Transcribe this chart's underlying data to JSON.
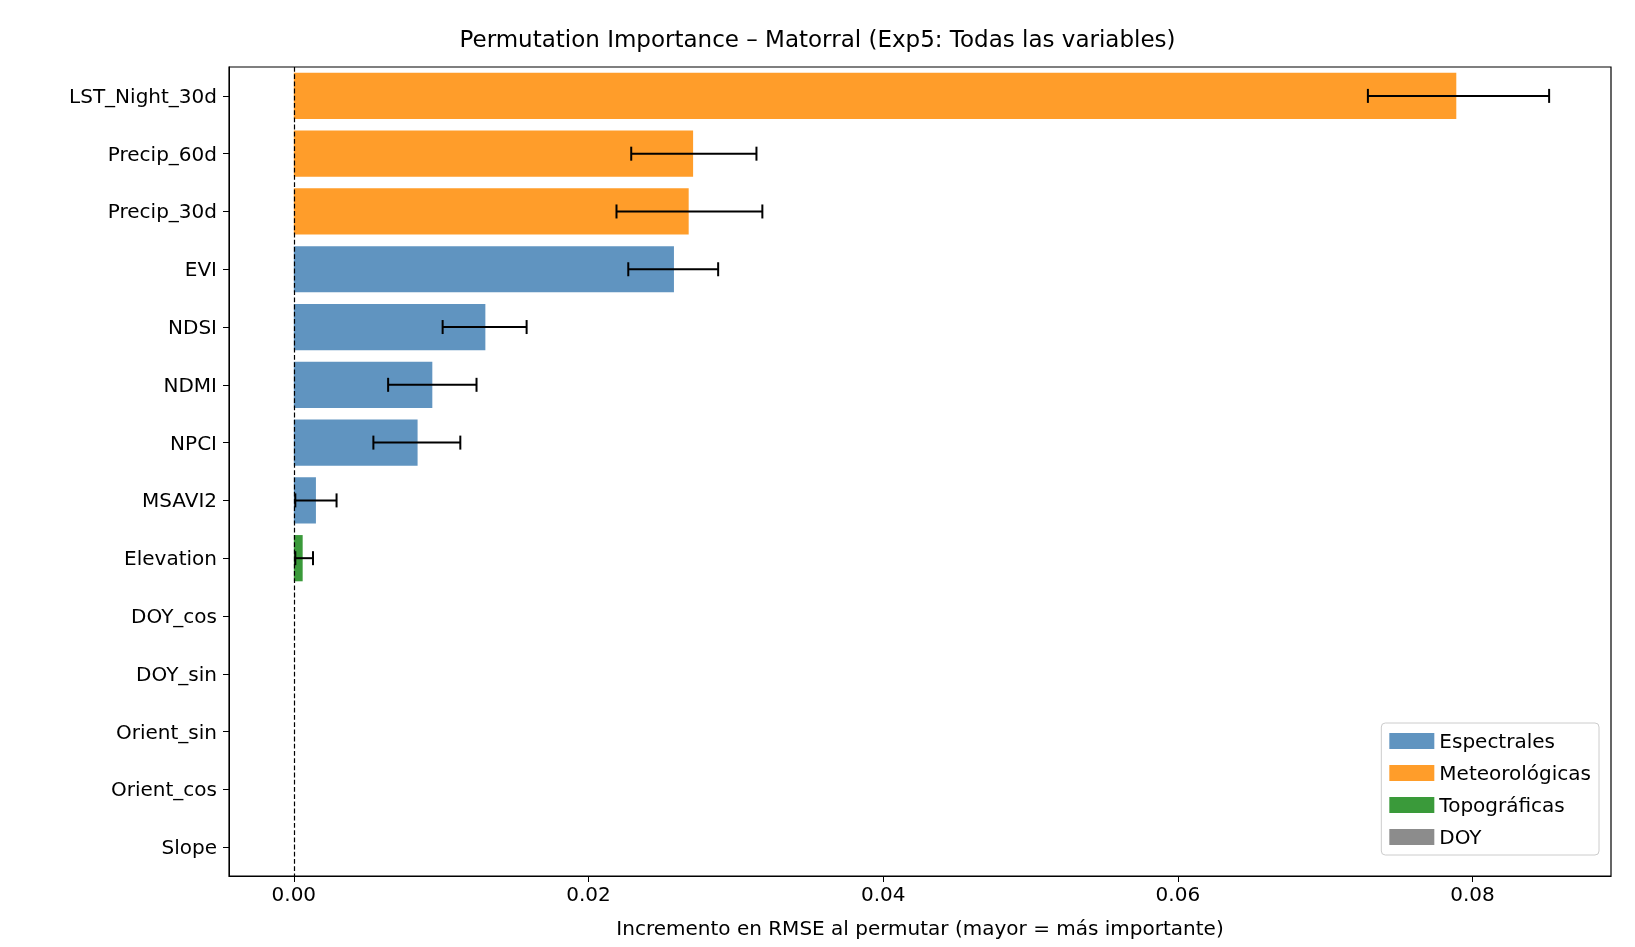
{
  "chart_data": {
    "type": "bar",
    "orientation": "horizontal",
    "title": "Permutation Importance – Matorral (Exp5: Todas las variables)",
    "xlabel": "Incremento en RMSE al permutar (mayor = más importante)",
    "categories": [
      "LST_Night_30d",
      "Precip_60d",
      "Precip_30d",
      "EVI",
      "NDSI",
      "NDMI",
      "NPCI",
      "MSAVI2",
      "Elevation",
      "DOY_cos",
      "DOY_sin",
      "Orient_sin",
      "Orient_cos",
      "Slope"
    ],
    "series": [
      {
        "name": "Espectrales",
        "color": "#6094c0",
        "values": [
          null,
          null,
          null,
          0.0258,
          0.013,
          0.0094,
          0.0084,
          0.0015,
          null,
          null,
          null,
          null,
          null,
          null
        ],
        "errors": [
          null,
          null,
          null,
          [
            0.0227,
            0.0288
          ],
          [
            0.0101,
            0.0158
          ],
          [
            0.0064,
            0.0124
          ],
          [
            0.0054,
            0.0113
          ],
          [
            0.0001,
            0.0029
          ],
          null,
          null,
          null,
          null,
          null,
          null
        ]
      },
      {
        "name": "Meteorológicas",
        "color": "#ff9d2a",
        "values": [
          0.0789,
          0.0271,
          0.0268,
          null,
          null,
          null,
          null,
          null,
          null,
          null,
          null,
          null,
          null,
          null
        ],
        "errors": [
          [
            0.0729,
            0.0852
          ],
          [
            0.0229,
            0.0314
          ],
          [
            0.0219,
            0.0318
          ],
          null,
          null,
          null,
          null,
          null,
          null,
          null,
          null,
          null,
          null,
          null
        ]
      },
      {
        "name": "Topográficas",
        "color": "#3a9a3a",
        "values": [
          null,
          null,
          null,
          null,
          null,
          null,
          null,
          null,
          0.0006,
          null,
          null,
          0,
          0,
          0
        ],
        "errors": [
          null,
          null,
          null,
          null,
          null,
          null,
          null,
          null,
          [
            0.0001,
            0.0013
          ],
          null,
          null,
          null,
          null,
          null
        ]
      },
      {
        "name": "DOY",
        "color": "#8c8c8c",
        "values": [
          null,
          null,
          null,
          null,
          null,
          null,
          null,
          null,
          null,
          0,
          0,
          null,
          null,
          null
        ]
      }
    ],
    "xlim": [
      -0.0044,
      0.0894
    ],
    "xticks": [
      {
        "value": 0,
        "label": "0.00"
      },
      0.02,
      0.04,
      0.06,
      0.08
    ],
    "grid": false,
    "legend": "bottom right",
    "ref_lines": [
      {
        "axis": "x",
        "value": 0,
        "color": "#000000",
        "line_style": "dashed"
      }
    ]
  }
}
